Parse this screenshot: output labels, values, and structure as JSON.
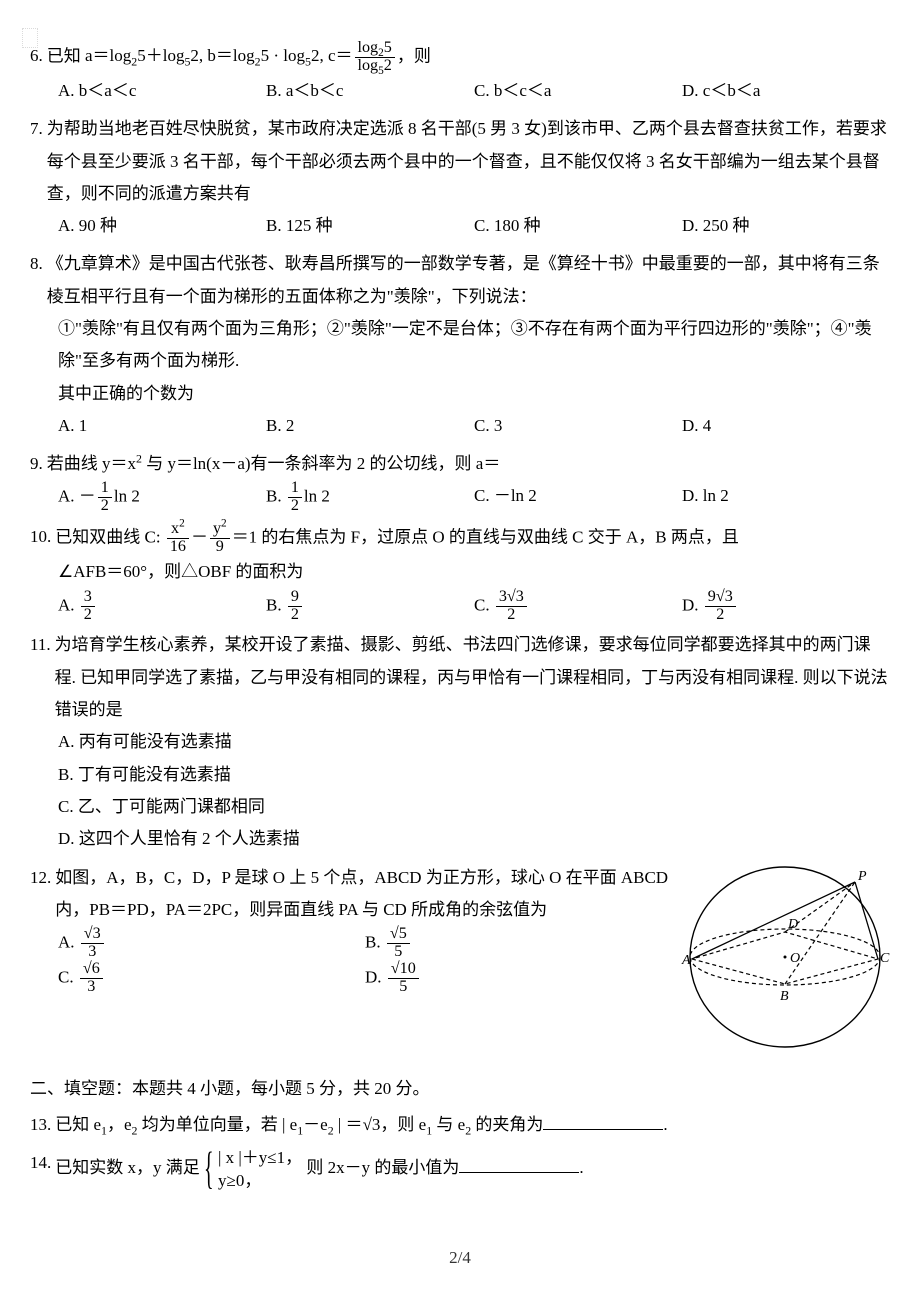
{
  "q6": {
    "num": "6.",
    "stem_a": "已知 ",
    "expr": "a＝log<sub>2</sub>5＋log<sub>5</sub>2, b＝log<sub>2</sub>5 · log<sub>5</sub>2, c＝",
    "frac_num": "log<sub>2</sub>5",
    "frac_den": "log<sub>5</sub>2",
    "stem_b": "，则",
    "A": "A. b＜a＜c",
    "B": "B. a＜b＜c",
    "C": "C. b＜c＜a",
    "D": "D. c＜b＜a"
  },
  "q7": {
    "num": "7.",
    "stem": "为帮助当地老百姓尽快脱贫，某市政府决定选派 8 名干部(5 男 3 女)到该市甲、乙两个县去督查扶贫工作，若要求每个县至少要派 3 名干部，每个干部必须去两个县中的一个督查，且不能仅仅将 3 名女干部编为一组去某个县督查，则不同的派遣方案共有",
    "A": "A. 90 种",
    "B": "B. 125 种",
    "C": "C. 180 种",
    "D": "D. 250 种"
  },
  "q8": {
    "num": "8.",
    "stem": "《九章算术》是中国古代张苍、耿寿昌所撰写的一部数学专著，是《算经十书》中最重要的一部，其中将有三条棱互相平行且有一个面为梯形的五面体称之为\"羡除\"，下列说法：",
    "p1": "①\"羡除\"有且仅有两个面为三角形；②\"羡除\"一定不是台体；③不存在有两个面为平行四边形的\"羡除\"；④\"羡除\"至多有两个面为梯形.",
    "p2": "其中正确的个数为",
    "A": "A. 1",
    "B": "B. 2",
    "C": "C. 3",
    "D": "D. 4"
  },
  "q9": {
    "num": "9.",
    "stem_a": "若曲线 y＝x",
    "stem_b": " 与 y＝ln(x－a)有一条斜率为 2 的公切线，则 a＝",
    "A_pre": "A. －",
    "A_num": "1",
    "A_den": "2",
    "A_post": "ln 2",
    "B_pre": "B. ",
    "B_num": "1",
    "B_den": "2",
    "B_post": "ln 2",
    "C": "C. －ln 2",
    "D": "D. ln 2"
  },
  "q10": {
    "num": "10.",
    "stem_a": "已知双曲线 C: ",
    "xnum": "x<sup>2</sup>",
    "xden": "16",
    "minus": "－",
    "ynum": "y<sup>2</sup>",
    "yden": "9",
    "stem_b": "＝1 的右焦点为 F，过原点 O 的直线与双曲线 C 交于 A，B 两点，且",
    "stem_c": "∠AFB＝60°，则△OBF 的面积为",
    "A_pre": "A. ",
    "A_num": "3",
    "A_den": "2",
    "B_pre": "B. ",
    "B_num": "9",
    "B_den": "2",
    "C_pre": "C. ",
    "C_num": "3√3",
    "C_den": "2",
    "D_pre": "D. ",
    "D_num": "9√3",
    "D_den": "2"
  },
  "q11": {
    "num": "11.",
    "stem": "为培育学生核心素养，某校开设了素描、摄影、剪纸、书法四门选修课，要求每位同学都要选择其中的两门课程. 已知甲同学选了素描，乙与甲没有相同的课程，丙与甲恰有一门课程相同，丁与丙没有相同课程. 则以下说法错误的是",
    "A": "A. 丙有可能没有选素描",
    "B": "B. 丁有可能没有选素描",
    "C": "C. 乙、丁可能两门课都相同",
    "D": "D. 这四个人里恰有 2 个人选素描"
  },
  "q12": {
    "num": "12.",
    "stem": "如图，A，B，C，D，P 是球 O 上 5 个点，ABCD 为正方形，球心 O 在平面 ABCD 内，PB＝PD，PA＝2PC，则异面直线 PA 与 CD 所成角的余弦值为",
    "A_pre": "A. ",
    "A_num": "√3",
    "A_den": "3",
    "B_pre": "B. ",
    "B_num": "√5",
    "B_den": "5",
    "C_pre": "C. ",
    "C_num": "√6",
    "C_den": "3",
    "D_pre": "D. ",
    "D_num": "√10",
    "D_den": "5",
    "fig": {
      "labels": {
        "A": "A",
        "B": "B",
        "C": "C",
        "D": "D",
        "O": "O",
        "P": "P"
      },
      "stroke": "#000",
      "dash": "4,3"
    }
  },
  "section2": "二、填空题：本题共 4 小题，每小题 5 分，共 20 分。",
  "q13": {
    "num": "13.",
    "stem_a": "已知 e",
    "stem_b": "，e",
    "stem_c": " 均为单位向量，若 | e",
    "stem_d": "－e",
    "stem_e": " | ＝",
    "sqrt3": "√3",
    "stem_f": "，则 e",
    "stem_g": " 与 e",
    "stem_h": " 的夹角为",
    "period": "."
  },
  "q14": {
    "num": "14.",
    "stem_a": "已知实数 x，y 满足",
    "row1": "| x |＋y≤1，",
    "row2": "y≥0，",
    "stem_b": "则 2x－y 的最小值为",
    "period": "."
  },
  "pagenum": "2/4"
}
